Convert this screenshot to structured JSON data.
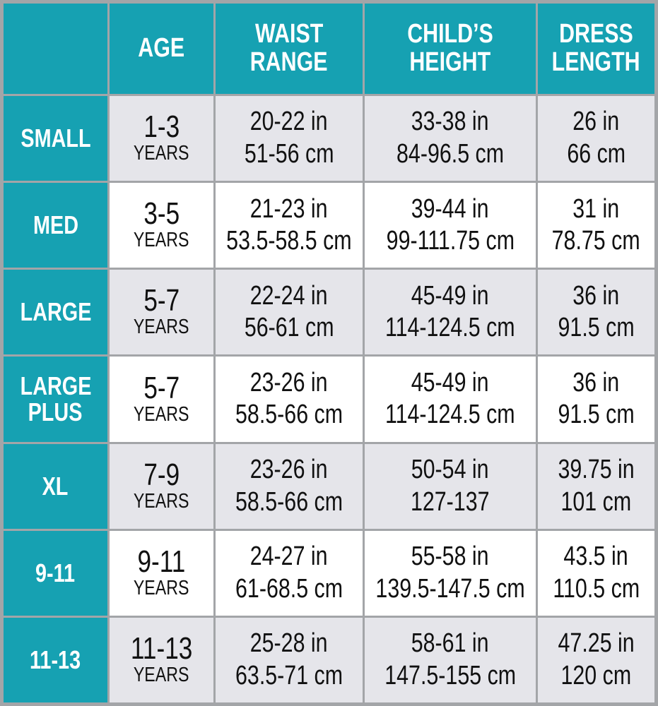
{
  "table": {
    "header": [
      [
        "AGE"
      ],
      [
        "WAIST",
        "RANGE"
      ],
      [
        "CHILD’S",
        "HEIGHT"
      ],
      [
        "DRESS",
        "LENGTH"
      ]
    ],
    "rows": [
      {
        "size": [
          "SMALL"
        ],
        "cells": [
          [
            "1-3",
            "YEARS"
          ],
          [
            "20-22 in",
            "51-56 cm"
          ],
          [
            "33-38 in",
            "84-96.5 cm"
          ],
          [
            "26 in",
            "66 cm"
          ]
        ]
      },
      {
        "size": [
          "MED"
        ],
        "cells": [
          [
            "3-5",
            "YEARS"
          ],
          [
            "21-23 in",
            "53.5-58.5 cm"
          ],
          [
            "39-44 in",
            "99-111.75 cm"
          ],
          [
            "31 in",
            "78.75 cm"
          ]
        ]
      },
      {
        "size": [
          "LARGE"
        ],
        "cells": [
          [
            "5-7",
            "YEARS"
          ],
          [
            "22-24 in",
            "56-61 cm"
          ],
          [
            "45-49 in",
            "114-124.5 cm"
          ],
          [
            "36 in",
            "91.5 cm"
          ]
        ]
      },
      {
        "size": [
          "LARGE",
          "PLUS"
        ],
        "cells": [
          [
            "5-7",
            "YEARS"
          ],
          [
            "23-26 in",
            "58.5-66 cm"
          ],
          [
            "45-49 in",
            "114-124.5 cm"
          ],
          [
            "36 in",
            "91.5 cm"
          ]
        ]
      },
      {
        "size": [
          "XL"
        ],
        "cells": [
          [
            "7-9",
            "YEARS"
          ],
          [
            "23-26 in",
            "58.5-66 cm"
          ],
          [
            "50-54 in",
            "127-137"
          ],
          [
            "39.75 in",
            "101 cm"
          ]
        ]
      },
      {
        "size": [
          "9-11"
        ],
        "cells": [
          [
            "9-11",
            "YEARS"
          ],
          [
            "24-27 in",
            "61-68.5 cm"
          ],
          [
            "55-58 in",
            "139.5-147.5 cm"
          ],
          [
            "43.5 in",
            "110.5 cm"
          ]
        ]
      },
      {
        "size": [
          "11-13"
        ],
        "cells": [
          [
            "11-13",
            "YEARS"
          ],
          [
            "25-28 in",
            "63.5-71 cm"
          ],
          [
            "58-61 in",
            "147.5-155 cm"
          ],
          [
            "47.25 in",
            "120 cm"
          ]
        ]
      }
    ]
  }
}
